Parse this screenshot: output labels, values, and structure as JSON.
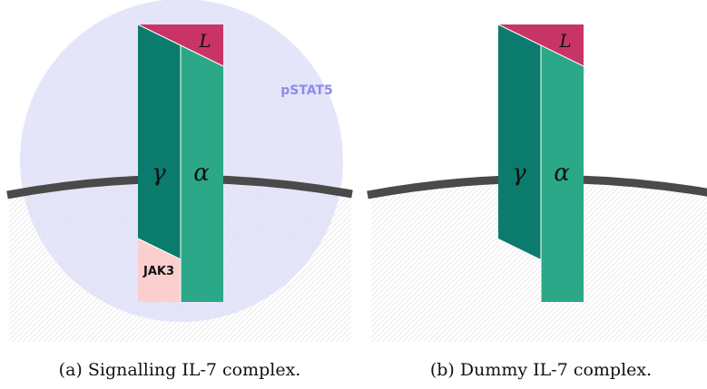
{
  "panels": [
    {
      "ligand_label": "L",
      "gamma_label": "γ",
      "alpha_label": "α",
      "kinase_label": "JAK3",
      "signal_label": "pSTAT5",
      "caption": "(a) Signalling IL-7 complex."
    },
    {
      "ligand_label": "L",
      "gamma_label": "γ",
      "alpha_label": "α",
      "caption": "(b) Dummy IL-7 complex."
    }
  ],
  "colors": {
    "ligand": "#c93466",
    "gamma_chain": "#0b7b6e",
    "alpha_chain": "#2ba887",
    "kinase": "#fccfcf",
    "signal_halo": "#e1e1f9",
    "signal_text": "#8b8bef",
    "membrane": "#4a4a4a"
  }
}
